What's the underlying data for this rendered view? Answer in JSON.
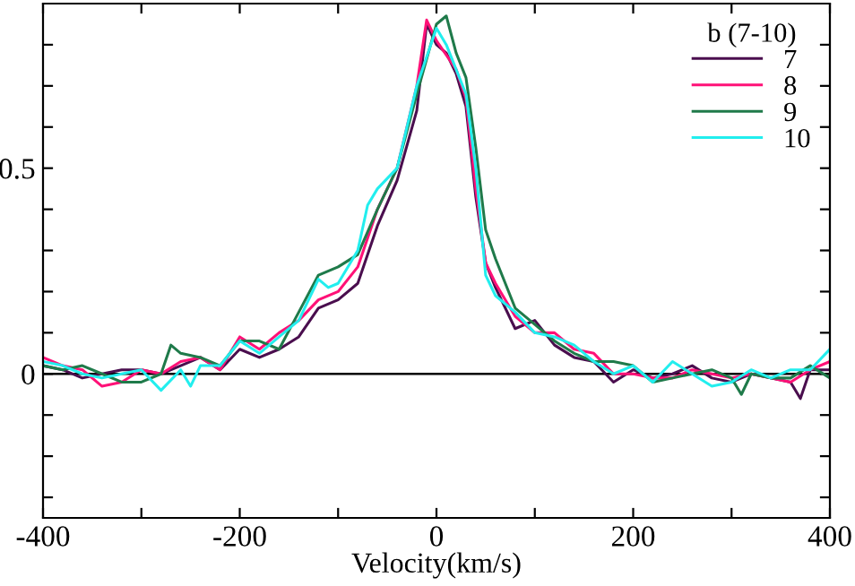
{
  "chart_data": {
    "type": "line",
    "xlabel": "Velocity(km/s)",
    "legend_title": "b (7-10)",
    "legend": "top right",
    "grid": false,
    "marker": "none",
    "line_style": "solid",
    "xlim": [
      -400,
      400
    ],
    "ylim": [
      -0.35,
      0.9
    ],
    "xticks": [
      -400,
      {
        "value": -300,
        "label": null
      },
      -200,
      {
        "value": -100,
        "label": null
      },
      0,
      {
        "value": 100,
        "label": null
      },
      200,
      {
        "value": 300,
        "label": null
      },
      400
    ],
    "yticks": [
      {
        "value": -0.3,
        "label": null
      },
      {
        "value": -0.2,
        "label": null
      },
      {
        "value": -0.1,
        "label": null
      },
      0,
      {
        "value": 0.1,
        "label": null
      },
      {
        "value": 0.2,
        "label": null
      },
      {
        "value": 0.3,
        "label": null
      },
      {
        "value": 0.4,
        "label": null
      },
      0.5,
      {
        "value": 0.6,
        "label": null
      },
      {
        "value": 0.7,
        "label": null
      },
      {
        "value": 0.8,
        "label": null
      }
    ],
    "ref_lines": [
      {
        "axis": "y",
        "value": 0,
        "color": "#000000",
        "line_style": "solid"
      }
    ],
    "series": [
      {
        "name": "7",
        "color": "#4a0e4e",
        "x": [
          -400,
          -380,
          -360,
          -340,
          -320,
          -300,
          -280,
          -260,
          -240,
          -220,
          -200,
          -180,
          -160,
          -140,
          -120,
          -100,
          -80,
          -60,
          -40,
          -20,
          -10,
          0,
          10,
          20,
          30,
          40,
          50,
          60,
          80,
          100,
          120,
          140,
          160,
          180,
          200,
          220,
          240,
          260,
          280,
          300,
          320,
          340,
          360,
          370,
          380,
          400
        ],
        "values": [
          0.02,
          0.01,
          -0.01,
          0,
          0.01,
          0.01,
          0,
          0.02,
          0.04,
          0.01,
          0.06,
          0.04,
          0.06,
          0.09,
          0.16,
          0.18,
          0.22,
          0.36,
          0.47,
          0.64,
          0.85,
          0.8,
          0.78,
          0.73,
          0.65,
          0.43,
          0.27,
          0.21,
          0.11,
          0.13,
          0.07,
          0.04,
          0.03,
          -0.02,
          0.01,
          -0.01,
          0,
          0.02,
          -0.01,
          -0.02,
          0,
          -0.01,
          -0.02,
          -0.06,
          0.01,
          0.01
        ]
      },
      {
        "name": "8",
        "color": "#ff1177",
        "x": [
          -400,
          -380,
          -360,
          -340,
          -320,
          -300,
          -280,
          -260,
          -240,
          -220,
          -200,
          -180,
          -160,
          -140,
          -120,
          -100,
          -80,
          -60,
          -40,
          -20,
          -10,
          0,
          20,
          30,
          40,
          50,
          60,
          80,
          100,
          120,
          140,
          160,
          180,
          200,
          220,
          240,
          260,
          280,
          300,
          320,
          340,
          360,
          380,
          400
        ],
        "values": [
          0.04,
          0.02,
          0.01,
          -0.03,
          -0.02,
          0.01,
          0,
          0.03,
          0.04,
          0.01,
          0.09,
          0.06,
          0.1,
          0.13,
          0.18,
          0.2,
          0.26,
          0.4,
          0.5,
          0.7,
          0.86,
          0.81,
          0.74,
          0.67,
          0.45,
          0.27,
          0.22,
          0.14,
          0.1,
          0.1,
          0.06,
          0.05,
          0,
          0,
          -0.01,
          -0.01,
          0.01,
          0,
          -0.01,
          0,
          -0.01,
          -0.02,
          0.01,
          0.03
        ]
      },
      {
        "name": "9",
        "color": "#1f7a4a",
        "x": [
          -400,
          -380,
          -360,
          -340,
          -320,
          -300,
          -280,
          -270,
          -260,
          -240,
          -220,
          -200,
          -180,
          -160,
          -140,
          -120,
          -100,
          -80,
          -60,
          -40,
          -20,
          0,
          10,
          20,
          30,
          40,
          50,
          60,
          80,
          100,
          120,
          140,
          160,
          180,
          200,
          220,
          240,
          260,
          280,
          300,
          310,
          320,
          340,
          360,
          380,
          400
        ],
        "values": [
          0.02,
          0.01,
          0.02,
          0,
          -0.02,
          -0.02,
          0,
          0.07,
          0.05,
          0.04,
          0.02,
          0.08,
          0.08,
          0.06,
          0.15,
          0.24,
          0.26,
          0.29,
          0.4,
          0.5,
          0.68,
          0.85,
          0.87,
          0.78,
          0.72,
          0.55,
          0.35,
          0.28,
          0.16,
          0.12,
          0.08,
          0.05,
          0.03,
          0.03,
          0.02,
          -0.02,
          -0.01,
          0,
          0.01,
          -0.01,
          -0.05,
          0,
          -0.01,
          -0.01,
          0.02,
          -0.01
        ]
      },
      {
        "name": "10",
        "color": "#22eeee",
        "x": [
          -400,
          -380,
          -360,
          -340,
          -320,
          -300,
          -280,
          -260,
          -250,
          -240,
          -220,
          -200,
          -180,
          -160,
          -140,
          -120,
          -110,
          -100,
          -80,
          -70,
          -60,
          -40,
          -20,
          0,
          10,
          20,
          30,
          40,
          50,
          60,
          80,
          100,
          120,
          140,
          160,
          180,
          200,
          220,
          240,
          260,
          280,
          300,
          320,
          340,
          360,
          380,
          400
        ],
        "values": [
          0.03,
          0.02,
          0,
          -0.01,
          0,
          0.01,
          -0.04,
          0.01,
          -0.03,
          0.02,
          0.02,
          0.08,
          0.05,
          0.09,
          0.13,
          0.23,
          0.21,
          0.22,
          0.3,
          0.41,
          0.45,
          0.5,
          0.7,
          0.84,
          0.8,
          0.74,
          0.68,
          0.5,
          0.24,
          0.19,
          0.15,
          0.1,
          0.09,
          0.07,
          0.03,
          0,
          0.02,
          -0.02,
          0.03,
          0,
          -0.03,
          -0.02,
          0.01,
          -0.01,
          0.01,
          0.01,
          0.06
        ]
      }
    ]
  }
}
